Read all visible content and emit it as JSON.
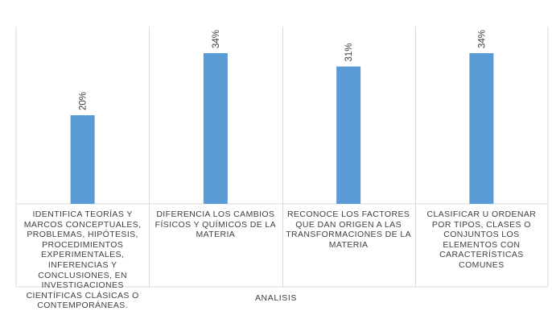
{
  "chart_data": {
    "type": "bar",
    "title": "",
    "xlabel": "ANALISIS",
    "ylabel": "",
    "ylim": [
      0,
      40
    ],
    "categories": [
      "IDENTIFICA TEORÍAS Y MARCOS CONCEPTUALES, PROBLEMAS, HIPÓTESIS, PROCEDIMIENTOS EXPERIMENTALES, INFERENCIAS Y CONCLUSIONES, EN INVESTIGACIONES CIENTÍFICAS CLÁSICAS O CONTEMPORÁNEAS.",
      "DIFERENCIA LOS CAMBIOS FÍSICOS Y QUÍMICOS DE LA MATERIA",
      "RECONOCE LOS FACTORES QUE DAN ORIGEN A LAS TRANSFORMACIONES DE LA MATERIA",
      "CLASIFICAR U ORDENAR POR TIPOS, CLASES O CONJUNTOS LOS ELEMENTOS CON CARACTERÍSTICAS COMUNES"
    ],
    "values": [
      20,
      34,
      31,
      34
    ],
    "data_labels": [
      "20%",
      "34%",
      "31%",
      "34%"
    ],
    "grid": false,
    "legend": "none",
    "bar_color": "#5b9bd5",
    "border_color": "#d9d9d9"
  }
}
